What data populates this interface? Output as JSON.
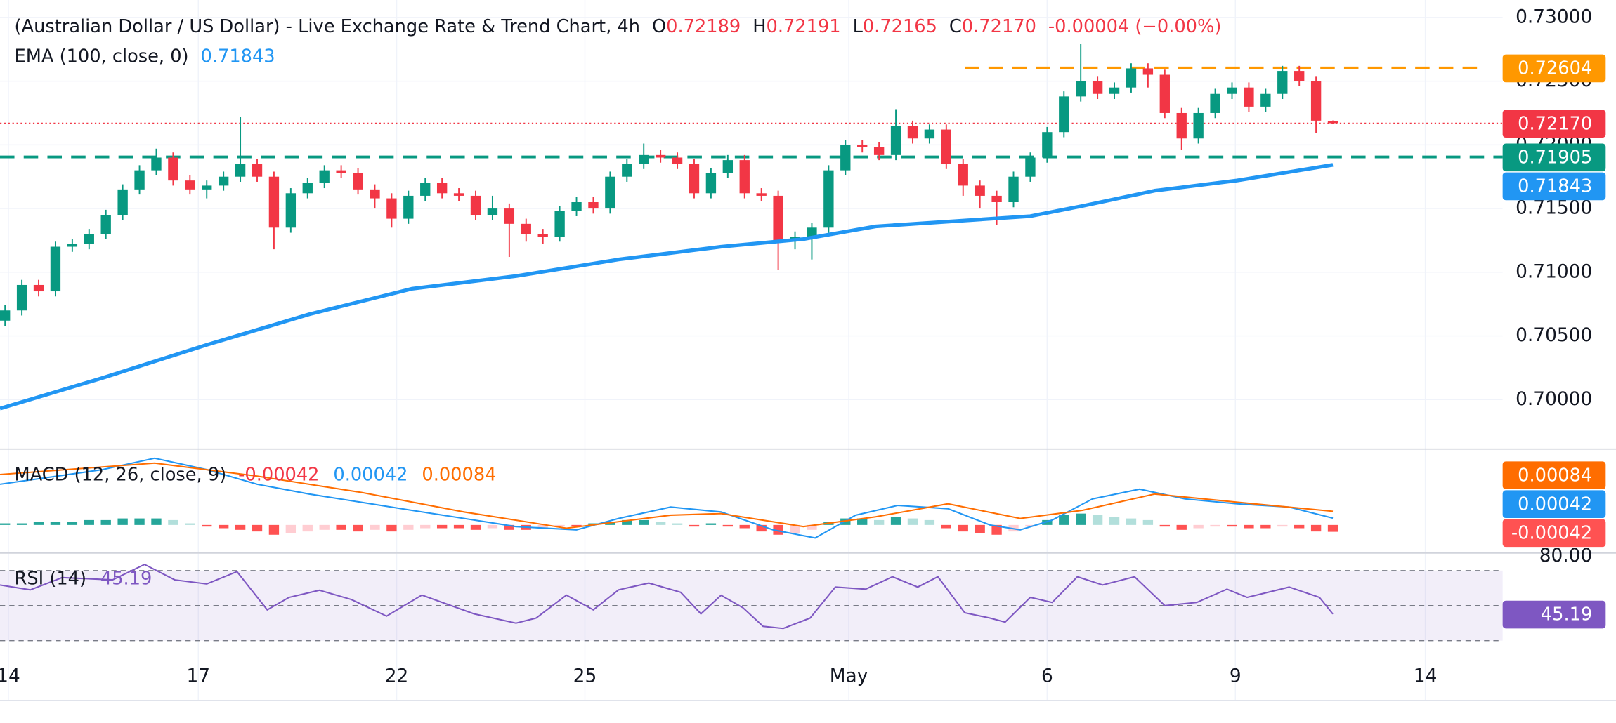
{
  "chart_data": {
    "type": "candlestick",
    "title": "(Australian Dollar / US Dollar) - Live Exchange Rate & Trend Chart, 4h",
    "ohlc_keys": [
      "O",
      "H",
      "L",
      "C"
    ],
    "change": "-0.00004 (−0.00%)",
    "xlim": [
      -0.3,
      89.1
    ],
    "xticks": [
      {
        "value": 0.2,
        "label": "14"
      },
      {
        "value": 11.5,
        "label": "17"
      },
      {
        "value": 23.3,
        "label": "22"
      },
      {
        "value": 34.5,
        "label": "25"
      },
      {
        "value": 50.2,
        "label": "May"
      },
      {
        "value": 62,
        "label": "6"
      },
      {
        "value": 73.2,
        "label": "9"
      },
      {
        "value": 84.5,
        "label": "14"
      }
    ],
    "ylim": [
      0.6962,
      0.73137
    ],
    "yticks": [
      {
        "value": 0.7,
        "label": "0.70000"
      },
      {
        "value": 0.705,
        "label": "0.70500"
      },
      {
        "value": 0.71,
        "label": "0.71000"
      },
      {
        "value": 0.715,
        "label": "0.71500"
      },
      {
        "value": 0.72,
        "label": "0.72000"
      },
      {
        "value": 0.725,
        "label": "0.72500"
      },
      {
        "value": 0.73,
        "label": "0.73000"
      }
    ],
    "grid": true,
    "candles": {
      "up_color": "#089981",
      "down_color": "#f23645",
      "open": [
        0.7062,
        0.707,
        0.709,
        0.7085,
        0.712,
        0.7122,
        0.713,
        0.7145,
        0.7165,
        0.718,
        0.719,
        0.7172,
        0.7165,
        0.7168,
        0.7175,
        0.7185,
        0.7175,
        0.7135,
        0.7162,
        0.717,
        0.718,
        0.7178,
        0.7165,
        0.7158,
        0.7142,
        0.716,
        0.717,
        0.7162,
        0.716,
        0.7145,
        0.715,
        0.7138,
        0.713,
        0.7128,
        0.7148,
        0.7155,
        0.715,
        0.7175,
        0.7185,
        0.7192,
        0.719,
        0.7185,
        0.7162,
        0.7178,
        0.7188,
        0.7162,
        0.716,
        0.7125,
        0.7128,
        0.7135,
        0.718,
        0.72,
        0.7198,
        0.7192,
        0.7215,
        0.7205,
        0.7212,
        0.7185,
        0.7168,
        0.716,
        0.7155,
        0.7175,
        0.719,
        0.721,
        0.7238,
        0.725,
        0.724,
        0.7245,
        0.726,
        0.7255,
        0.7225,
        0.7205,
        0.7225,
        0.724,
        0.7245,
        0.723,
        0.724,
        0.7258,
        0.725,
        0.72189
      ],
      "high": [
        0.7074,
        0.7094,
        0.7094,
        0.7124,
        0.7126,
        0.7134,
        0.7149,
        0.7169,
        0.7184,
        0.7197,
        0.7194,
        0.7176,
        0.7172,
        0.7179,
        0.7222,
        0.7189,
        0.7179,
        0.7166,
        0.7174,
        0.7184,
        0.7184,
        0.7182,
        0.7169,
        0.7162,
        0.7164,
        0.7174,
        0.7174,
        0.7166,
        0.7164,
        0.716,
        0.7154,
        0.7142,
        0.7134,
        0.7152,
        0.7159,
        0.7159,
        0.7179,
        0.7189,
        0.7201,
        0.7196,
        0.7194,
        0.7189,
        0.7182,
        0.7192,
        0.7192,
        0.7166,
        0.7164,
        0.7132,
        0.7139,
        0.7184,
        0.7204,
        0.7204,
        0.7202,
        0.7228,
        0.7219,
        0.7216,
        0.7216,
        0.7189,
        0.7172,
        0.7164,
        0.7179,
        0.7194,
        0.7214,
        0.7242,
        0.7279,
        0.7254,
        0.7249,
        0.7264,
        0.7264,
        0.7259,
        0.7229,
        0.7229,
        0.7244,
        0.7249,
        0.7249,
        0.7244,
        0.7262,
        0.7262,
        0.7254,
        0.72191
      ],
      "low": [
        0.7058,
        0.7066,
        0.7081,
        0.7081,
        0.7116,
        0.7118,
        0.7126,
        0.7141,
        0.7161,
        0.7176,
        0.7168,
        0.7161,
        0.7158,
        0.7164,
        0.7171,
        0.7171,
        0.7118,
        0.7131,
        0.7158,
        0.7166,
        0.7174,
        0.7161,
        0.715,
        0.7135,
        0.7138,
        0.7156,
        0.7158,
        0.7156,
        0.7141,
        0.7141,
        0.7112,
        0.7124,
        0.7122,
        0.7124,
        0.7144,
        0.7146,
        0.7146,
        0.7171,
        0.7181,
        0.7186,
        0.7181,
        0.7158,
        0.7158,
        0.7174,
        0.7158,
        0.7156,
        0.7102,
        0.7118,
        0.711,
        0.7131,
        0.7176,
        0.7194,
        0.7188,
        0.7188,
        0.7201,
        0.7201,
        0.7181,
        0.716,
        0.715,
        0.7137,
        0.7151,
        0.7171,
        0.7186,
        0.7206,
        0.7234,
        0.7236,
        0.7236,
        0.7241,
        0.7245,
        0.7221,
        0.7196,
        0.7201,
        0.7221,
        0.7236,
        0.7226,
        0.7226,
        0.7236,
        0.7246,
        0.7209,
        0.72165
      ],
      "close": [
        0.707,
        0.709,
        0.7085,
        0.712,
        0.7122,
        0.713,
        0.7145,
        0.7165,
        0.718,
        0.719,
        0.7172,
        0.7165,
        0.7168,
        0.7175,
        0.7185,
        0.7175,
        0.7135,
        0.7162,
        0.717,
        0.718,
        0.7178,
        0.7165,
        0.7158,
        0.7142,
        0.716,
        0.717,
        0.7162,
        0.716,
        0.7145,
        0.715,
        0.7138,
        0.713,
        0.7128,
        0.7148,
        0.7155,
        0.715,
        0.7175,
        0.7185,
        0.7192,
        0.719,
        0.7185,
        0.7162,
        0.7178,
        0.7188,
        0.7162,
        0.716,
        0.7125,
        0.7128,
        0.7135,
        0.718,
        0.72,
        0.7198,
        0.7192,
        0.7215,
        0.7205,
        0.7212,
        0.7185,
        0.7168,
        0.716,
        0.7155,
        0.7175,
        0.719,
        0.721,
        0.7238,
        0.725,
        0.724,
        0.7245,
        0.726,
        0.7255,
        0.7225,
        0.7205,
        0.7225,
        0.724,
        0.7245,
        0.723,
        0.724,
        0.7258,
        0.725,
        0.7219,
        0.7217
      ]
    },
    "last_price": {
      "value": 0.7217,
      "label": "0.72170",
      "color": "#f23645"
    },
    "ema": {
      "name": "EMA (100, close, 0)",
      "color": "#2196f3",
      "x": [
        -0.3,
        5.8,
        12,
        18.1,
        24.2,
        30.4,
        36.5,
        42.6,
        47.5,
        51.8,
        61,
        64.1,
        68.4,
        73.3,
        79
      ],
      "values": [
        0.6993,
        0.7017,
        0.7043,
        0.7067,
        0.7087,
        0.7097,
        0.711,
        0.712,
        0.7126,
        0.7136,
        0.7144,
        0.7152,
        0.7164,
        0.7172,
        0.71843
      ]
    },
    "levels": [
      {
        "value": 0.72604,
        "color": "#ff9800",
        "from": 57.1,
        "to": 88
      },
      {
        "value": 0.71905,
        "color": "#089981",
        "from": -0.3,
        "to": 89.1
      }
    ],
    "macd": {
      "name": "MACD (12, 26, close, 9)",
      "ylim": [
        -0.0016,
        0.0046
      ],
      "histogram": {
        "up_color": "#26a69a",
        "up_light": "#b2dfdb",
        "down_color": "#ff5252",
        "down_light": "#ffcdd2",
        "values": [
          0.0001,
          0.0001,
          0.0002,
          0.0002,
          0.0002,
          0.0003,
          0.0003,
          0.0004,
          0.0004,
          0.0004,
          0.0003,
          0.0001,
          -0.0001,
          -0.0002,
          -0.0003,
          -0.0004,
          -0.0006,
          -0.0005,
          -0.0004,
          -0.0003,
          -0.0003,
          -0.0004,
          -0.0003,
          -0.0004,
          -0.0003,
          -0.0002,
          -0.0002,
          -0.0002,
          -0.0003,
          -0.0002,
          -0.0003,
          -0.0003,
          -0.0002,
          -0.0001,
          -0.0001,
          0.0001,
          0.0002,
          0.0003,
          0.0003,
          0.0002,
          0.0001,
          -0.0001,
          0.0001,
          -0.0001,
          -0.0002,
          -0.0004,
          -0.0006,
          -0.0005,
          -0.0003,
          0.0002,
          0.0004,
          0.0004,
          0.0003,
          0.0005,
          0.0004,
          0.0003,
          -0.0002,
          -0.0004,
          -0.0005,
          -0.0006,
          -0.0004,
          -0.0001,
          0.0003,
          0.0006,
          0.0007,
          0.0006,
          0.0005,
          0.0004,
          0.0003,
          -0.0001,
          -0.0003,
          -0.0002,
          -0.0001,
          -0.0001,
          -0.0002,
          -0.0002,
          -0.0001,
          -0.0002,
          -0.0004,
          -0.00042
        ]
      },
      "macd": {
        "color": "#2196f3",
        "x": [
          -0.3,
          5.8,
          8.9,
          12,
          15,
          18.1,
          24.2,
          30.4,
          34,
          36.5,
          39.6,
          42.6,
          45.7,
          48.2,
          50.6,
          53.1,
          56.1,
          58.6,
          60.4,
          62.3,
          64.7,
          67.5,
          70.2,
          73.3,
          76.4,
          79
        ],
        "values": [
          0.0025,
          0.0034,
          0.0041,
          0.0034,
          0.0025,
          0.0019,
          0.0009,
          -0.0001,
          -0.0003,
          0.0004,
          0.0011,
          0.0008,
          -0.0003,
          -0.0008,
          0.0006,
          0.0012,
          0.001,
          0,
          -0.0003,
          0.0003,
          0.0016,
          0.0022,
          0.0016,
          0.0013,
          0.0011,
          0.00042
        ]
      },
      "signal": {
        "color": "#ff6d00",
        "x": [
          -0.3,
          8.9,
          15,
          21.2,
          27.3,
          33.4,
          39.6,
          42.6,
          47.5,
          51.8,
          56.1,
          60.4,
          64.1,
          68.4,
          73.3,
          79
        ],
        "values": [
          0.0031,
          0.0038,
          0.003,
          0.002,
          0.0008,
          -0.0002,
          0.0006,
          0.0007,
          -0.0001,
          0.0005,
          0.0013,
          0.0004,
          0.0009,
          0.0019,
          0.0014,
          0.00084
        ]
      }
    },
    "rsi": {
      "name": "RSI (14)",
      "color": "#7e57c2",
      "ylim": [
        26.5,
        80
      ],
      "yticks": [
        {
          "value": 80,
          "label": "80.00"
        }
      ],
      "levels": [
        70,
        50,
        30
      ],
      "x": [
        -0.3,
        1.5,
        3.4,
        6.4,
        8.3,
        10.1,
        12,
        13.8,
        15.6,
        16.9,
        18.7,
        20.6,
        22.7,
        24.8,
        27.9,
        30.4,
        31.6,
        33.4,
        35,
        36.5,
        38.3,
        40.2,
        41.4,
        42.6,
        43.9,
        45.1,
        46.3,
        47.9,
        49.4,
        51.2,
        52.8,
        54.3,
        55.5,
        57.1,
        58.6,
        59.5,
        61,
        62.3,
        63.8,
        65.3,
        67.2,
        69,
        70.9,
        72.7,
        73.9,
        76.4,
        78.2,
        79
      ],
      "values": [
        61.8,
        59,
        66,
        64.7,
        73.5,
        64.7,
        62.4,
        69.4,
        47.6,
        54.7,
        58.8,
        53.5,
        44,
        56,
        45.3,
        40,
        42.9,
        56,
        47.6,
        59,
        62.9,
        57.6,
        45.3,
        55.9,
        48.8,
        38.2,
        37,
        42.9,
        60.6,
        59.4,
        66.5,
        60.6,
        66.5,
        45.9,
        42.9,
        40.6,
        54.7,
        51.8,
        66.5,
        61.8,
        66.5,
        50,
        51.8,
        59.4,
        54.7,
        60.6,
        54.7,
        45.19
      ]
    }
  }
}
